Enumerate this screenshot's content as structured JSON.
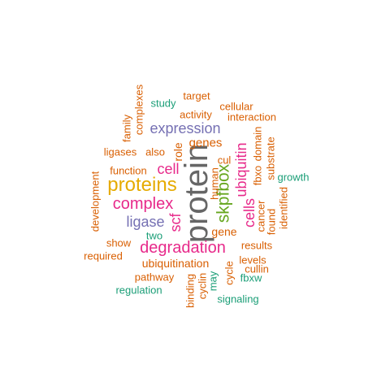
{
  "palette": {
    "orange": "#d95f02",
    "teal": "#1b9e77",
    "purple": "#7570b3",
    "magenta": "#e7298a",
    "green": "#66a61e",
    "gold": "#e6ab02",
    "gray": "#666666"
  },
  "words": [
    {
      "id": "protein",
      "text": "protein",
      "color": "gray",
      "weight": 10
    },
    {
      "id": "proteins",
      "text": "proteins",
      "color": "gold",
      "weight": 7
    },
    {
      "id": "degradation",
      "text": "degradation",
      "color": "magenta",
      "weight": 6
    },
    {
      "id": "skpfbox",
      "text": "skpfbox",
      "color": "green",
      "weight": 6
    },
    {
      "id": "complex",
      "text": "complex",
      "color": "magenta",
      "weight": 6
    },
    {
      "id": "ubiquitin",
      "text": "ubiquitin",
      "color": "magenta",
      "weight": 5
    },
    {
      "id": "cells",
      "text": "cells",
      "color": "magenta",
      "weight": 5
    },
    {
      "id": "cell",
      "text": "cell",
      "color": "magenta",
      "weight": 5
    },
    {
      "id": "scf",
      "text": "scf",
      "color": "magenta",
      "weight": 5
    },
    {
      "id": "expression",
      "text": "expression",
      "color": "purple",
      "weight": 5
    },
    {
      "id": "ligase",
      "text": "ligase",
      "color": "purple",
      "weight": 5
    },
    {
      "id": "genes",
      "text": "genes",
      "color": "orange",
      "weight": 3
    },
    {
      "id": "gene",
      "text": "gene",
      "color": "orange",
      "weight": 3
    },
    {
      "id": "ubiquitination",
      "text": "ubiquitination",
      "color": "orange",
      "weight": 3
    },
    {
      "id": "role",
      "text": "role",
      "color": "orange",
      "weight": 3
    },
    {
      "id": "target",
      "text": "target",
      "color": "orange",
      "weight": 2
    },
    {
      "id": "cellular",
      "text": "cellular",
      "color": "orange",
      "weight": 2
    },
    {
      "id": "activity",
      "text": "activity",
      "color": "orange",
      "weight": 2
    },
    {
      "id": "interaction",
      "text": "interaction",
      "color": "orange",
      "weight": 2
    },
    {
      "id": "complexes",
      "text": "complexes",
      "color": "orange",
      "weight": 2
    },
    {
      "id": "family",
      "text": "family",
      "color": "orange",
      "weight": 2
    },
    {
      "id": "study",
      "text": "study",
      "color": "teal",
      "weight": 2
    },
    {
      "id": "ligases",
      "text": "ligases",
      "color": "orange",
      "weight": 2
    },
    {
      "id": "also",
      "text": "also",
      "color": "orange",
      "weight": 2
    },
    {
      "id": "cul",
      "text": "cul",
      "color": "orange",
      "weight": 2
    },
    {
      "id": "function",
      "text": "function",
      "color": "orange",
      "weight": 2
    },
    {
      "id": "human",
      "text": "human",
      "color": "orange",
      "weight": 2
    },
    {
      "id": "domain",
      "text": "domain",
      "color": "orange",
      "weight": 2
    },
    {
      "id": "fbxo",
      "text": "fbxo",
      "color": "orange",
      "weight": 2
    },
    {
      "id": "substrate",
      "text": "substrate",
      "color": "orange",
      "weight": 2
    },
    {
      "id": "growth",
      "text": "growth",
      "color": "teal",
      "weight": 2
    },
    {
      "id": "identified",
      "text": "identified",
      "color": "orange",
      "weight": 2
    },
    {
      "id": "found",
      "text": "found",
      "color": "orange",
      "weight": 2
    },
    {
      "id": "cancer",
      "text": "cancer",
      "color": "orange",
      "weight": 2
    },
    {
      "id": "development",
      "text": "development",
      "color": "orange",
      "weight": 2
    },
    {
      "id": "two",
      "text": "two",
      "color": "teal",
      "weight": 2
    },
    {
      "id": "show",
      "text": "show",
      "color": "orange",
      "weight": 2
    },
    {
      "id": "results",
      "text": "results",
      "color": "orange",
      "weight": 2
    },
    {
      "id": "required",
      "text": "required",
      "color": "orange",
      "weight": 2
    },
    {
      "id": "levels",
      "text": "levels",
      "color": "orange",
      "weight": 2
    },
    {
      "id": "cullin",
      "text": "cullin",
      "color": "orange",
      "weight": 2
    },
    {
      "id": "fbxw",
      "text": "fbxw",
      "color": "teal",
      "weight": 2
    },
    {
      "id": "pathway",
      "text": "pathway",
      "color": "orange",
      "weight": 2
    },
    {
      "id": "binding",
      "text": "binding",
      "color": "orange",
      "weight": 2
    },
    {
      "id": "cyclin",
      "text": "cyclin",
      "color": "orange",
      "weight": 2
    },
    {
      "id": "may",
      "text": "may",
      "color": "teal",
      "weight": 2
    },
    {
      "id": "cycle",
      "text": "cycle",
      "color": "orange",
      "weight": 2
    },
    {
      "id": "regulation",
      "text": "regulation",
      "color": "teal",
      "weight": 2
    },
    {
      "id": "signaling",
      "text": "signaling",
      "color": "teal",
      "weight": 2
    }
  ]
}
